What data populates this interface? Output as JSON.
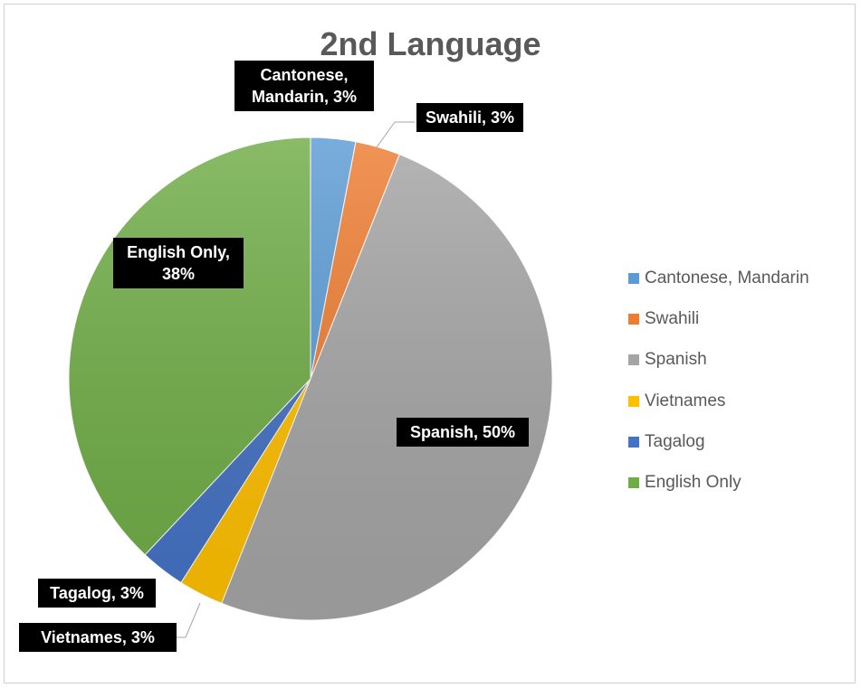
{
  "chart_data": {
    "type": "pie",
    "title": "2nd Language",
    "legend_position": "right",
    "slices": [
      {
        "label": "Cantonese, Mandarin",
        "value": 3,
        "data_label": "Cantonese, Mandarin, 3%",
        "color": "#5B9BD5"
      },
      {
        "label": "Swahili",
        "value": 3,
        "data_label": "Swahili, 3%",
        "color": "#ED7D31"
      },
      {
        "label": "Spanish",
        "value": 50,
        "data_label": "Spanish, 50%",
        "color": "#A5A5A5"
      },
      {
        "label": "Vietnames",
        "value": 3,
        "data_label": "Vietnames, 3%",
        "color": "#FFC000"
      },
      {
        "label": "Tagalog",
        "value": 3,
        "data_label": "Tagalog, 3%",
        "color": "#4472C4"
      },
      {
        "label": "English Only",
        "value": 38,
        "data_label": "English Only, 38%",
        "color": "#70AD47"
      }
    ]
  }
}
